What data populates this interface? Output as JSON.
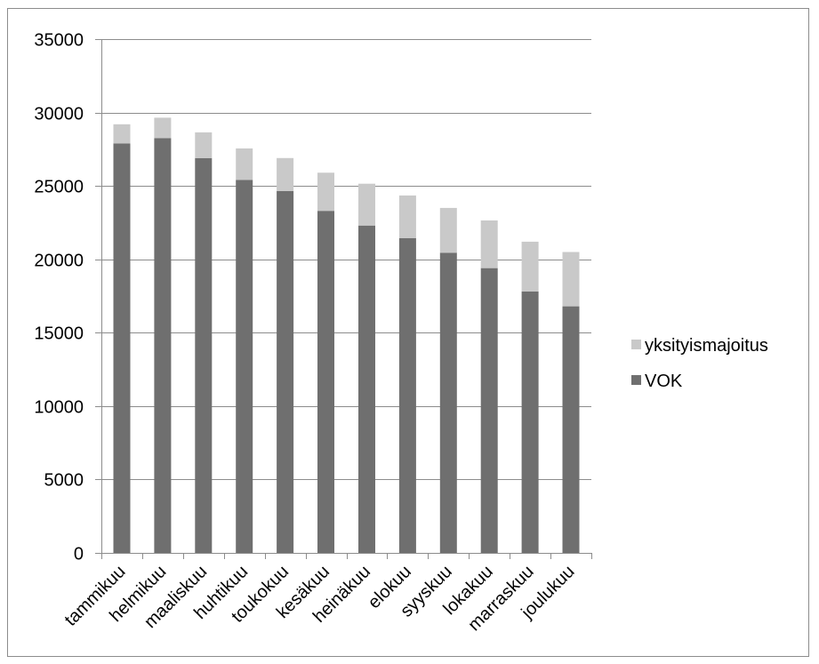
{
  "chart_data": {
    "type": "bar",
    "stacked": true,
    "categories": [
      "tammikuu",
      "helmikuu",
      "maaliskuu",
      "huhtikuu",
      "toukokuu",
      "kesäkuu",
      "heinäkuu",
      "elokuu",
      "syyskuu",
      "lokakuu",
      "marraskuu",
      "joulukuu"
    ],
    "series": [
      {
        "name": "VOK",
        "color": "#6f6f6f",
        "values": [
          27900,
          28250,
          26900,
          25400,
          24650,
          23300,
          22300,
          21450,
          20450,
          19400,
          17800,
          16800
        ]
      },
      {
        "name": "yksityismajoitus",
        "color": "#c9c9c9",
        "values": [
          1300,
          1400,
          1750,
          2150,
          2250,
          2600,
          2850,
          2900,
          3050,
          3250,
          3400,
          3700
        ]
      }
    ],
    "title": "",
    "xlabel": "",
    "ylabel": "",
    "ylim": [
      0,
      35000
    ],
    "yticks": [
      "0",
      "5000",
      "10000",
      "15000",
      "20000",
      "25000",
      "30000",
      "35000"
    ],
    "grid": true,
    "legend_position": "right",
    "legend_entries": [
      "yksityismajoitus",
      "VOK"
    ]
  }
}
